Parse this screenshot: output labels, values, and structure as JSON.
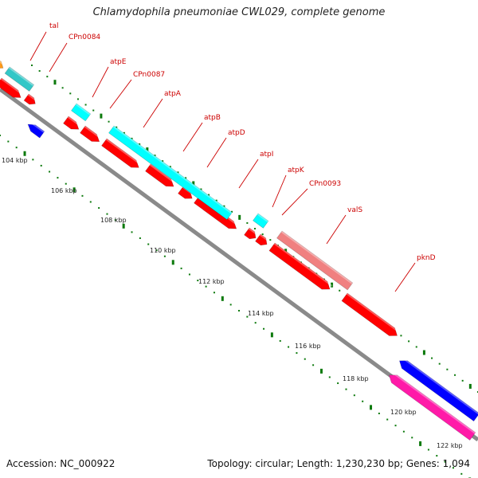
{
  "title": "Chlamydophila pneumoniae CWL029, complete genome",
  "footer": {
    "accession": "Accession: NC_000922",
    "summary": "Topology: circular; Length: 1,230,230 bp; Genes: 1,094"
  },
  "colors": {
    "backbone": "#8c8c8c",
    "tick": "#0d7a0d",
    "label": "#cc0000"
  },
  "kbp_labels": [
    "104 kbp",
    "106 kbp",
    "108 kbp",
    "110 kbp",
    "112 kbp",
    "114 kbp",
    "116 kbp",
    "118 kbp",
    "120 kbp",
    "122 kbp"
  ],
  "gene_labels": [
    "tal",
    "CPn0084",
    "atpE",
    "CPn0087",
    "atpA",
    "atpB",
    "atpD",
    "atpI",
    "atpK",
    "CPn0093",
    "valS",
    "pknD"
  ],
  "feature_colors": [
    "#ff9a1a",
    "#33c7c7",
    "#00ffff",
    "#ff0000",
    "#f08080",
    "#0000ff",
    "#ff1aa8"
  ]
}
